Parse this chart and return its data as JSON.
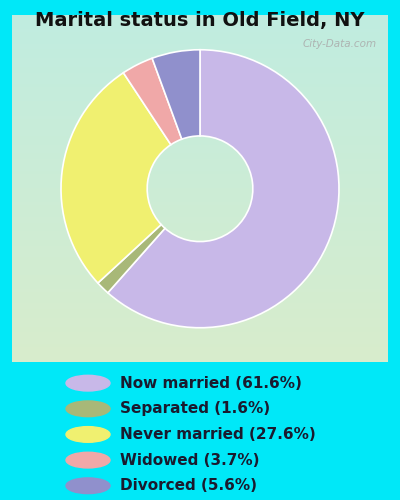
{
  "title": "Marital status in Old Field, NY",
  "slices": [
    61.6,
    1.6,
    27.6,
    3.7,
    5.6
  ],
  "labels": [
    "Now married (61.6%)",
    "Separated (1.6%)",
    "Never married (27.6%)",
    "Widowed (3.7%)",
    "Divorced (5.6%)"
  ],
  "colors": [
    "#c8b8e8",
    "#a8b878",
    "#f0f070",
    "#f0a8a8",
    "#9090cc"
  ],
  "bg_top_left": "#c0ede0",
  "bg_bottom_right": "#d8eccC",
  "outer_bg": "#00e8f8",
  "title_color": "#111111",
  "title_fontsize": 14,
  "legend_fontsize": 11,
  "watermark": "City-Data.com",
  "donut_width": 0.62
}
